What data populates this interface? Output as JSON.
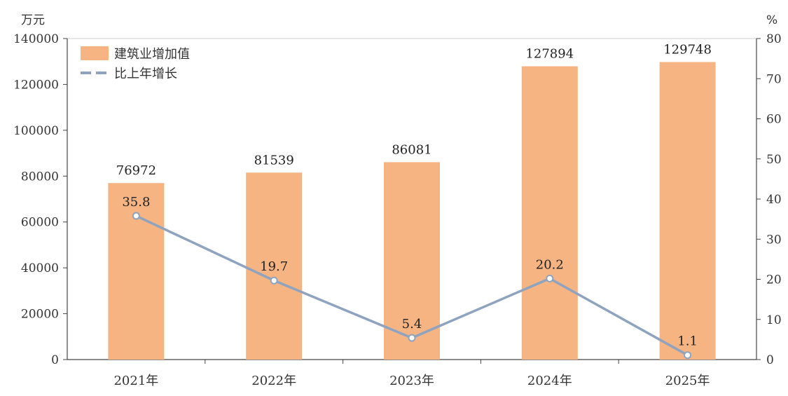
{
  "chart_data": {
    "type": "bar",
    "categories": [
      "2021年",
      "2022年",
      "2023年",
      "2024年",
      "2025年"
    ],
    "series": [
      {
        "name": "建筑业增加值",
        "type": "bar",
        "axis": "left",
        "values": [
          76972,
          81539,
          86081,
          127894,
          129748
        ],
        "data_labels": [
          "76972",
          "81539",
          "86081",
          "127894",
          "129748"
        ],
        "color": "#F5B482"
      },
      {
        "name": "比上年增长",
        "type": "line",
        "axis": "right",
        "values": [
          35.8,
          19.7,
          5.4,
          20.2,
          1.1
        ],
        "data_labels": [
          "35.8",
          "19.7",
          "5.4",
          "20.2",
          "1.1"
        ],
        "color": "#8FA3BF"
      }
    ],
    "y_left": {
      "unit": "万元",
      "range": [
        0,
        140000
      ],
      "ticks": [
        "0",
        "20000",
        "40000",
        "60000",
        "80000",
        "100000",
        "120000",
        "140000"
      ]
    },
    "y_right": {
      "unit": "%",
      "range": [
        0,
        80
      ],
      "ticks": [
        "0",
        "10",
        "20",
        "30",
        "40",
        "50",
        "60",
        "70",
        "80"
      ]
    },
    "legend": {
      "position": "top-left",
      "items": [
        "建筑业增加值",
        "比上年增长"
      ]
    },
    "grid": false
  }
}
